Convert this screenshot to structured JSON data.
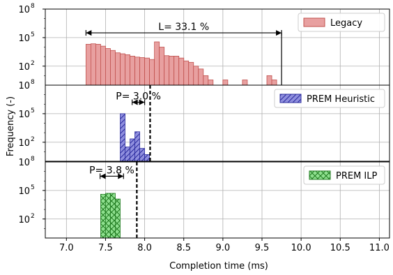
{
  "chart_data": {
    "type": "histogram",
    "xlabel": "Completion time (ms)",
    "ylabel": "Frequency (-)",
    "x_ticks": [
      7.0,
      7.5,
      8.0,
      8.5,
      9.0,
      9.5,
      10.0,
      10.5,
      11.0
    ],
    "xlim": [
      6.73,
      11.13
    ],
    "y_scale": "log",
    "y_tick_labels": [
      "10^8",
      "10^5",
      "10^2"
    ],
    "ylim_log10": [
      0,
      8
    ],
    "grid": true,
    "legend_position": "top-right",
    "panels": [
      {
        "name": "Legacy",
        "color": "#e8a0a0",
        "edge_color": "#c0504d",
        "hatch": "none",
        "bin_width": 0.0625,
        "bins": [
          {
            "x": 7.25,
            "log10_count": 4.3
          },
          {
            "x": 7.3125,
            "log10_count": 4.35
          },
          {
            "x": 7.375,
            "log10_count": 4.3
          },
          {
            "x": 7.4375,
            "log10_count": 4.1
          },
          {
            "x": 7.5,
            "log10_count": 3.85
          },
          {
            "x": 7.5625,
            "log10_count": 3.65
          },
          {
            "x": 7.625,
            "log10_count": 3.4
          },
          {
            "x": 7.6875,
            "log10_count": 3.3
          },
          {
            "x": 7.75,
            "log10_count": 3.2
          },
          {
            "x": 7.8125,
            "log10_count": 3.05
          },
          {
            "x": 7.875,
            "log10_count": 2.95
          },
          {
            "x": 7.9375,
            "log10_count": 2.9
          },
          {
            "x": 8.0,
            "log10_count": 2.85
          },
          {
            "x": 8.0625,
            "log10_count": 2.7
          },
          {
            "x": 8.125,
            "log10_count": 4.55
          },
          {
            "x": 8.1875,
            "log10_count": 4.0
          },
          {
            "x": 8.25,
            "log10_count": 3.1
          },
          {
            "x": 8.3125,
            "log10_count": 3.05
          },
          {
            "x": 8.375,
            "log10_count": 3.05
          },
          {
            "x": 8.4375,
            "log10_count": 2.85
          },
          {
            "x": 8.5,
            "log10_count": 2.55
          },
          {
            "x": 8.5625,
            "log10_count": 2.4
          },
          {
            "x": 8.625,
            "log10_count": 2.0
          },
          {
            "x": 8.6875,
            "log10_count": 1.7
          },
          {
            "x": 8.75,
            "log10_count": 1.0
          },
          {
            "x": 8.8125,
            "log10_count": 0.55
          },
          {
            "x": 9.0,
            "log10_count": 0.55
          },
          {
            "x": 9.25,
            "log10_count": 0.55
          },
          {
            "x": 9.5625,
            "log10_count": 1.0
          },
          {
            "x": 9.625,
            "log10_count": 0.55
          }
        ],
        "annotation": {
          "text": "L= 33.1 %",
          "x_from": 7.25,
          "x_to": 9.75,
          "log10_y": 5.5
        }
      },
      {
        "name": "PREM Heuristic",
        "color": "#8f8fde",
        "edge_color": "#2c2c9e",
        "hatch": "diagonal",
        "bin_width": 0.0625,
        "bins": [
          {
            "x": 7.6875,
            "log10_count": 5.0
          },
          {
            "x": 7.75,
            "log10_count": 1.5
          },
          {
            "x": 7.8125,
            "log10_count": 2.35
          },
          {
            "x": 7.875,
            "log10_count": 3.1
          },
          {
            "x": 7.9375,
            "log10_count": 1.35
          },
          {
            "x": 8.0,
            "log10_count": 0.7
          }
        ],
        "annotation": {
          "text": "P= 3.0 %",
          "x_from": 7.84,
          "x_to": 8.0,
          "log10_y": 6.2
        },
        "threshold": 8.07
      },
      {
        "name": "PREM ILP",
        "color": "#8fe08f",
        "edge_color": "#207a20",
        "hatch": "cross",
        "bin_width": 0.0625,
        "bins": [
          {
            "x": 7.4375,
            "log10_count": 4.6
          },
          {
            "x": 7.5,
            "log10_count": 4.7
          },
          {
            "x": 7.5625,
            "log10_count": 4.7
          },
          {
            "x": 7.625,
            "log10_count": 4.1
          }
        ],
        "annotation": {
          "text": "P= 3.8 %",
          "x_from": 7.43,
          "x_to": 7.73,
          "log10_y": 6.5
        },
        "threshold": 7.9
      }
    ]
  }
}
